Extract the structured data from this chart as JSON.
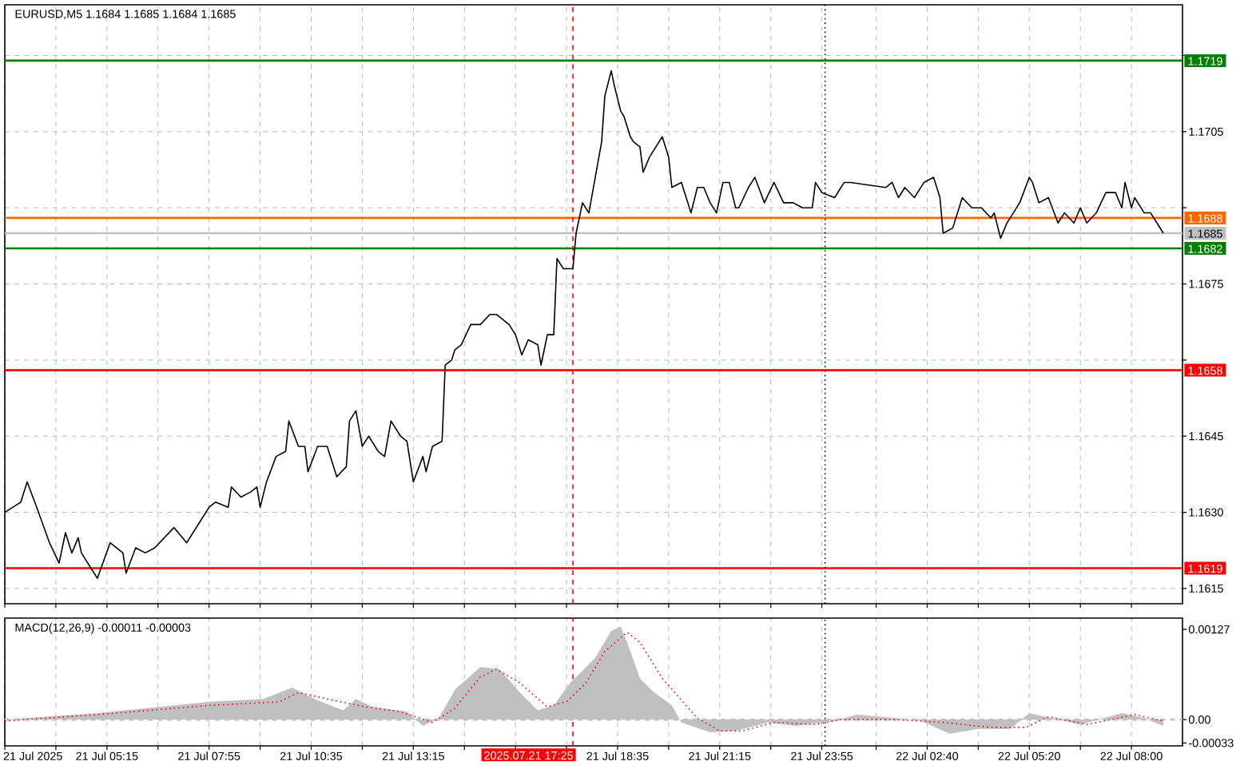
{
  "chart_data": [
    {
      "type": "line",
      "title": "EURUSD,M5  1.1684 1.1685 1.1684 1.1685",
      "series": [
        {
          "color": "#000000",
          "x": [
            "2025-07-21T02:35",
            "2025-07-21T03:00",
            "2025-07-21T03:10",
            "2025-07-21T03:25",
            "2025-07-21T03:45",
            "2025-07-21T04:00",
            "2025-07-21T04:10",
            "2025-07-21T04:20",
            "2025-07-21T04:30",
            "2025-07-21T04:35",
            "2025-07-21T04:50",
            "2025-07-21T05:00",
            "2025-07-21T05:20",
            "2025-07-21T05:40",
            "2025-07-21T05:45",
            "2025-07-21T06:00",
            "2025-07-21T06:15",
            "2025-07-21T06:30",
            "2025-07-21T07:00",
            "2025-07-21T07:20",
            "2025-07-21T07:40",
            "2025-07-21T07:55",
            "2025-07-21T08:05",
            "2025-07-21T08:25",
            "2025-07-21T08:30",
            "2025-07-21T08:45",
            "2025-07-21T09:00",
            "2025-07-21T09:10",
            "2025-07-21T09:15",
            "2025-07-21T09:25",
            "2025-07-21T09:40",
            "2025-07-21T09:55",
            "2025-07-21T10:00",
            "2025-07-21T10:15",
            "2025-07-21T10:25",
            "2025-07-21T10:30",
            "2025-07-21T10:45",
            "2025-07-21T11:00",
            "2025-07-21T11:10",
            "2025-07-21T11:15",
            "2025-07-21T11:30",
            "2025-07-21T11:35",
            "2025-07-21T11:45",
            "2025-07-21T11:55",
            "2025-07-21T12:05",
            "2025-07-21T12:20",
            "2025-07-21T12:30",
            "2025-07-21T12:40",
            "2025-07-21T12:55",
            "2025-07-21T13:05",
            "2025-07-21T13:15",
            "2025-07-21T13:30",
            "2025-07-21T13:35",
            "2025-07-21T13:45",
            "2025-07-21T14:00",
            "2025-07-21T14:05",
            "2025-07-21T14:15",
            "2025-07-21T14:20",
            "2025-07-21T14:30",
            "2025-07-21T14:45",
            "2025-07-21T15:00",
            "2025-07-21T15:15",
            "2025-07-21T15:25",
            "2025-07-21T15:45",
            "2025-07-21T15:55",
            "2025-07-21T16:05",
            "2025-07-21T16:15",
            "2025-07-21T16:30",
            "2025-07-21T16:35",
            "2025-07-21T16:45",
            "2025-07-21T16:55",
            "2025-07-21T17:00",
            "2025-07-21T17:10",
            "2025-07-21T17:25",
            "2025-07-21T17:30",
            "2025-07-21T17:40",
            "2025-07-21T17:50",
            "2025-07-21T18:00",
            "2025-07-21T18:10",
            "2025-07-21T18:15",
            "2025-07-21T18:25",
            "2025-07-21T18:30",
            "2025-07-21T18:40",
            "2025-07-21T18:45",
            "2025-07-21T18:55",
            "2025-07-21T19:00",
            "2025-07-21T19:10",
            "2025-07-21T19:15",
            "2025-07-21T19:25",
            "2025-07-21T19:45",
            "2025-07-21T19:55",
            "2025-07-21T20:00",
            "2025-07-21T20:15",
            "2025-07-21T20:25",
            "2025-07-21T20:30",
            "2025-07-21T20:40",
            "2025-07-21T20:50",
            "2025-07-21T21:00",
            "2025-07-21T21:10",
            "2025-07-21T21:20",
            "2025-07-21T21:30",
            "2025-07-21T21:40",
            "2025-07-21T21:45",
            "2025-07-21T22:00",
            "2025-07-21T22:10",
            "2025-07-21T22:25",
            "2025-07-21T22:40",
            "2025-07-21T22:55",
            "2025-07-21T23:10",
            "2025-07-21T23:25",
            "2025-07-21T23:40",
            "2025-07-21T23:45",
            "2025-07-21T23:55",
            "2025-07-22T00:15",
            "2025-07-22T00:30",
            "2025-07-22T00:40",
            "2025-07-22T01:35",
            "2025-07-22T01:45",
            "2025-07-22T01:55",
            "2025-07-22T02:05",
            "2025-07-22T02:20",
            "2025-07-22T02:35",
            "2025-07-22T02:50",
            "2025-07-22T03:00",
            "2025-07-22T03:05",
            "2025-07-22T03:20",
            "2025-07-22T03:30",
            "2025-07-22T03:35",
            "2025-07-22T03:50",
            "2025-07-22T04:05",
            "2025-07-22T04:20",
            "2025-07-22T04:25",
            "2025-07-22T04:35",
            "2025-07-22T04:45",
            "2025-07-22T04:55",
            "2025-07-22T05:05",
            "2025-07-22T05:20",
            "2025-07-22T05:25",
            "2025-07-22T05:35",
            "2025-07-22T05:50",
            "2025-07-22T06:05",
            "2025-07-22T06:15",
            "2025-07-22T06:30",
            "2025-07-22T06:40",
            "2025-07-22T06:50",
            "2025-07-22T07:05",
            "2025-07-22T07:20",
            "2025-07-22T07:35",
            "2025-07-22T07:45",
            "2025-07-22T07:50",
            "2025-07-22T08:00",
            "2025-07-22T08:05",
            "2025-07-22T08:20",
            "2025-07-22T08:30",
            "2025-07-22T08:40",
            "2025-07-22T08:50"
          ],
          "values": [
            1.163,
            1.1632,
            1.1636,
            1.1631,
            1.1624,
            1.162,
            1.1626,
            1.1622,
            1.1625,
            1.1622,
            1.1619,
            1.1617,
            1.1624,
            1.1622,
            1.1618,
            1.1623,
            1.1622,
            1.1623,
            1.1627,
            1.1624,
            1.1628,
            1.1631,
            1.1632,
            1.1631,
            1.1635,
            1.1633,
            1.1634,
            1.1635,
            1.1631,
            1.1636,
            1.1641,
            1.1642,
            1.1648,
            1.1643,
            1.1643,
            1.1638,
            1.1643,
            1.1643,
            1.1639,
            1.1637,
            1.1639,
            1.1648,
            1.165,
            1.1643,
            1.1645,
            1.1642,
            1.1641,
            1.1648,
            1.1645,
            1.1644,
            1.1636,
            1.1641,
            1.1638,
            1.1643,
            1.1644,
            1.1659,
            1.166,
            1.1662,
            1.1663,
            1.1667,
            1.1667,
            1.1669,
            1.1669,
            1.1667,
            1.1665,
            1.1661,
            1.1664,
            1.1663,
            1.1659,
            1.1665,
            1.1665,
            1.168,
            1.1678,
            1.1678,
            1.1685,
            1.1691,
            1.1689,
            1.1696,
            1.1703,
            1.1712,
            1.1717,
            1.1714,
            1.1709,
            1.1708,
            1.1704,
            1.1703,
            1.1702,
            1.1697,
            1.17,
            1.1704,
            1.17,
            1.1694,
            1.1695,
            1.1691,
            1.1689,
            1.1694,
            1.1694,
            1.1691,
            1.1689,
            1.1695,
            1.1695,
            1.169,
            1.169,
            1.1694,
            1.1696,
            1.1691,
            1.1695,
            1.1691,
            1.1691,
            1.169,
            1.169,
            1.1695,
            1.1693,
            1.1692,
            1.1695,
            1.1695,
            1.1694,
            1.1695,
            1.1692,
            1.1694,
            1.1692,
            1.1695,
            1.1696,
            1.1692,
            1.1685,
            1.1686,
            1.169,
            1.1692,
            1.169,
            1.169,
            1.1688,
            1.1689,
            1.1684,
            1.1687,
            1.1689,
            1.1691,
            1.1696,
            1.1695,
            1.1691,
            1.1692,
            1.1687,
            1.1689,
            1.1687,
            1.169,
            1.1687,
            1.1689,
            1.1693,
            1.1693,
            1.169,
            1.1695,
            1.169,
            1.1692,
            1.1689,
            1.1689,
            1.1687,
            1.1685
          ]
        }
      ],
      "xlim": [
        "2025-07-21T02:35",
        "2025-07-22T09:20"
      ],
      "xticks": [
        {
          "value": "2025-07-21T02:35",
          "label": null
        },
        {
          "value": "2025-07-21T03:55",
          "label": null
        },
        {
          "value": "2025-07-21T05:15",
          "label": null
        },
        {
          "value": "2025-07-21T06:35",
          "label": null
        },
        {
          "value": "2025-07-21T07:55",
          "label": null
        },
        {
          "value": "2025-07-21T09:15",
          "label": null
        },
        {
          "value": "2025-07-21T10:35",
          "label": null
        },
        {
          "value": "2025-07-21T11:55",
          "label": null
        },
        {
          "value": "2025-07-21T13:15",
          "label": null
        },
        {
          "value": "2025-07-21T14:35",
          "label": null
        },
        {
          "value": "2025-07-21T15:55",
          "label": null
        },
        {
          "value": "2025-07-21T17:15",
          "label": null
        },
        {
          "value": "2025-07-21T18:35",
          "label": null
        },
        {
          "value": "2025-07-21T19:55",
          "label": null
        },
        {
          "value": "2025-07-21T21:15",
          "label": null
        },
        {
          "value": "2025-07-21T22:35",
          "label": null
        },
        {
          "value": "2025-07-21T23:55",
          "label": null
        },
        {
          "value": "2025-07-22T01:20",
          "label": null
        },
        {
          "value": "2025-07-22T02:40",
          "label": null
        },
        {
          "value": "2025-07-22T04:00",
          "label": null
        },
        {
          "value": "2025-07-22T05:20",
          "label": null
        },
        {
          "value": "2025-07-22T06:40",
          "label": null
        },
        {
          "value": "2025-07-22T08:00",
          "label": null
        }
      ],
      "ylim": [
        1.1612,
        1.173
      ],
      "yticks": [
        1.1615,
        {
          "value": 1.163,
          "label": "1.1630"
        },
        1.1645,
        {
          "value": 1.166,
          "label": null
        },
        1.1675,
        {
          "value": 1.169,
          "label": null
        },
        1.1705,
        {
          "value": 1.172,
          "label": null
        }
      ],
      "grid": true,
      "tick_labels": "y",
      "ref_lines": [
        {
          "axis": "y",
          "value": 1.1719,
          "label": "1.1719",
          "color": "#008000"
        },
        {
          "axis": "y",
          "value": 1.1688,
          "label": "1.1688",
          "color": "#ff6600"
        },
        {
          "axis": "y",
          "value": 1.1685,
          "label": "1.1685",
          "color": "#c0c0c0"
        },
        {
          "axis": "y",
          "value": 1.1682,
          "label": "1.1682",
          "color": "#008000"
        },
        {
          "axis": "y",
          "value": 1.1658,
          "label": "1.1658",
          "color": "#ff0000"
        },
        {
          "axis": "y",
          "value": 1.1619,
          "label": "1.1619",
          "color": "#ff0000"
        },
        {
          "axis": "x",
          "value": "2025-07-21T17:25",
          "color": "#ff0000",
          "line_style": "dashed"
        },
        {
          "axis": "x",
          "value": "2025-07-22T00:00",
          "color": "#000000",
          "line_style": "dotted"
        }
      ]
    },
    {
      "type": "area",
      "title": "MACD(12,26,9) -0.00011 -0.00003",
      "series": [
        {
          "type": "area",
          "color": "#c0c0c0",
          "x": [
            "2025-07-21T02:35",
            "2025-07-21T05:00",
            "2025-07-21T07:55",
            "2025-07-21T09:20",
            "2025-07-21T10:05",
            "2025-07-21T10:45",
            "2025-07-21T11:25",
            "2025-07-21T11:45",
            "2025-07-21T12:10",
            "2025-07-21T13:05",
            "2025-07-21T13:30",
            "2025-07-21T13:55",
            "2025-07-21T14:20",
            "2025-07-21T15:00",
            "2025-07-21T15:30",
            "2025-07-21T16:00",
            "2025-07-21T16:30",
            "2025-07-21T16:55",
            "2025-07-21T17:20",
            "2025-07-21T18:00",
            "2025-07-21T18:25",
            "2025-07-21T18:40",
            "2025-07-21T18:50",
            "2025-07-21T19:10",
            "2025-07-21T19:30",
            "2025-07-21T20:00",
            "2025-07-21T20:15",
            "2025-07-21T21:00",
            "2025-07-21T21:40",
            "2025-07-21T22:30",
            "2025-07-21T23:15",
            "2025-07-22T00:15",
            "2025-07-22T00:50",
            "2025-07-22T01:50",
            "2025-07-22T02:30",
            "2025-07-22T03:15",
            "2025-07-22T04:00",
            "2025-07-22T04:50",
            "2025-07-22T05:20",
            "2025-07-22T06:05",
            "2025-07-22T06:40",
            "2025-07-22T07:45",
            "2025-07-22T08:20",
            "2025-07-22T08:50"
          ],
          "values": [
            0,
            9e-05,
            0.00025,
            0.00029,
            0.00045,
            0.00027,
            0.00013,
            0.00029,
            0.00018,
            0.00011,
            -9e-05,
            2e-05,
            0.00042,
            0.00074,
            0.00071,
            0.0004,
            0.00013,
            0.0002,
            0.00051,
            0.00087,
            0.00125,
            0.00131,
            0.00109,
            0.00058,
            0.0004,
            0.0002,
            -4e-05,
            -0.00018,
            -0.00016,
            -4e-05,
            -9e-05,
            -2e-05,
            7e-05,
            2e-05,
            -2e-05,
            -0.0002,
            -0.00013,
            -0.00013,
            9e-05,
            0,
            -7e-05,
            9e-05,
            2e-05,
            -9e-05
          ]
        },
        {
          "type": "line",
          "color": "#ff0000",
          "line_style": "dotted",
          "x": [
            "2025-07-21T02:35",
            "2025-07-21T05:00",
            "2025-07-21T07:55",
            "2025-07-21T09:45",
            "2025-07-21T10:15",
            "2025-07-21T11:00",
            "2025-07-21T12:00",
            "2025-07-21T12:55",
            "2025-07-21T13:45",
            "2025-07-21T14:20",
            "2025-07-21T15:00",
            "2025-07-21T15:25",
            "2025-07-21T16:00",
            "2025-07-21T16:45",
            "2025-07-21T17:15",
            "2025-07-21T17:45",
            "2025-07-21T18:15",
            "2025-07-21T18:50",
            "2025-07-21T19:10",
            "2025-07-21T19:45",
            "2025-07-21T20:40",
            "2025-07-21T21:15",
            "2025-07-21T21:50",
            "2025-07-21T22:40",
            "2025-07-21T23:45",
            "2025-07-22T00:25",
            "2025-07-22T01:50",
            "2025-07-22T03:05",
            "2025-07-22T04:20",
            "2025-07-22T05:15",
            "2025-07-22T05:50",
            "2025-07-22T06:50",
            "2025-07-22T08:05",
            "2025-07-22T08:50"
          ],
          "values": [
            -2e-05,
            7e-05,
            0.0002,
            0.00025,
            0.00038,
            0.00029,
            0.00018,
            0.00011,
            -4e-05,
            0.00016,
            0.0006,
            0.00071,
            0.00053,
            0.00018,
            0.00025,
            0.00051,
            0.00096,
            0.00123,
            0.00109,
            0.00058,
            2e-05,
            -0.00016,
            -0.00016,
            -4e-05,
            -7e-05,
            0,
            0,
            -4e-05,
            -0.00011,
            -0.00011,
            4e-05,
            -7e-05,
            7e-05,
            -2e-05
          ]
        }
      ],
      "xlim": [
        "2025-07-21T02:35",
        "2025-07-22T09:20"
      ],
      "xticks": [
        {
          "value": "2025-07-21T02:35",
          "label": "21 Jul 2025"
        },
        {
          "value": "2025-07-21T03:55",
          "label": null
        },
        {
          "value": "2025-07-21T05:15",
          "label": "21 Jul 05:15"
        },
        {
          "value": "2025-07-21T06:35",
          "label": null
        },
        {
          "value": "2025-07-21T07:55",
          "label": "21 Jul 07:55"
        },
        {
          "value": "2025-07-21T09:15",
          "label": null
        },
        {
          "value": "2025-07-21T10:35",
          "label": "21 Jul 10:35"
        },
        {
          "value": "2025-07-21T11:55",
          "label": null
        },
        {
          "value": "2025-07-21T13:15",
          "label": "21 Jul 13:15"
        },
        {
          "value": "2025-07-21T14:35",
          "label": null
        },
        {
          "value": "2025-07-21T15:55",
          "label": null
        },
        {
          "value": "2025-07-21T17:15",
          "label": null
        },
        {
          "value": "2025-07-21T18:35",
          "label": "21 Jul 18:35"
        },
        {
          "value": "2025-07-21T19:55",
          "label": null
        },
        {
          "value": "2025-07-21T21:15",
          "label": "21 Jul 21:15"
        },
        {
          "value": "2025-07-21T22:35",
          "label": null
        },
        {
          "value": "2025-07-21T23:55",
          "label": "21 Jul 23:55"
        },
        {
          "value": "2025-07-22T01:20",
          "label": null
        },
        {
          "value": "2025-07-22T02:40",
          "label": "22 Jul 02:40"
        },
        {
          "value": "2025-07-22T04:00",
          "label": null
        },
        {
          "value": "2025-07-22T05:20",
          "label": "22 Jul 05:20"
        },
        {
          "value": "2025-07-22T06:40",
          "label": null
        },
        {
          "value": "2025-07-22T08:00",
          "label": "22 Jul 08:00"
        }
      ],
      "ylim": [
        -0.00037,
        0.00143
      ],
      "yticks": [
        {
          "value": -0.00033,
          "label": "-0.00033"
        },
        {
          "value": 0,
          "label": "0.00"
        },
        {
          "value": 0.00127,
          "label": "0.00127"
        }
      ],
      "grid": "x",
      "ref_lines": [
        {
          "axis": "y",
          "value": 0,
          "color": "#c0c0c0",
          "line_style": "dashed"
        },
        {
          "axis": "x",
          "value": "2025-07-21T17:25",
          "label": "2025.07.21 17:25",
          "color": "#ff0000",
          "line_style": "dashed"
        },
        {
          "axis": "x",
          "value": "2025-07-22T00:00",
          "color": "#000000",
          "line_style": "dotted"
        }
      ]
    }
  ]
}
